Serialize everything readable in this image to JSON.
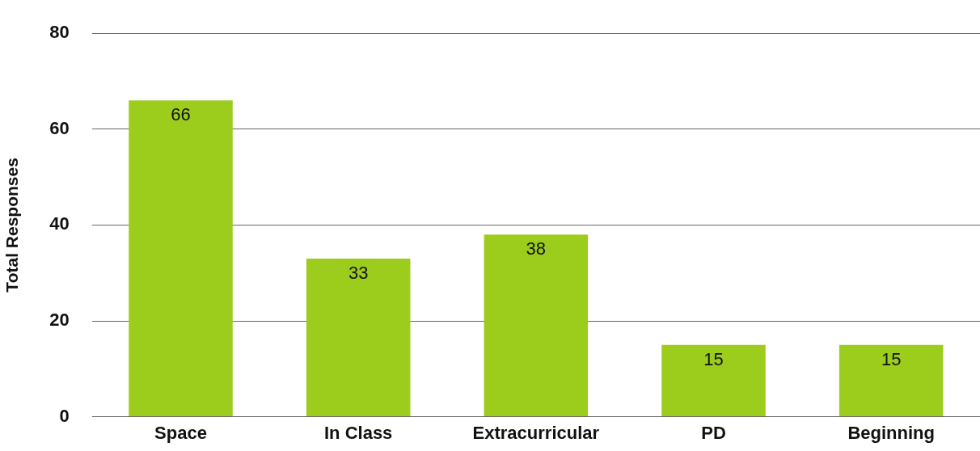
{
  "chart_data": {
    "type": "bar",
    "ylabel": "Total Responses",
    "categories": [
      "Space",
      "In Class",
      "Extracurricular",
      "PD",
      "Beginning"
    ],
    "values": [
      66,
      33,
      38,
      15,
      15
    ],
    "color": "#9ccc1c",
    "ylim": [
      0,
      80
    ],
    "yticks": [
      0,
      20,
      40,
      60,
      80
    ],
    "grid": "y",
    "data_labels": true
  }
}
